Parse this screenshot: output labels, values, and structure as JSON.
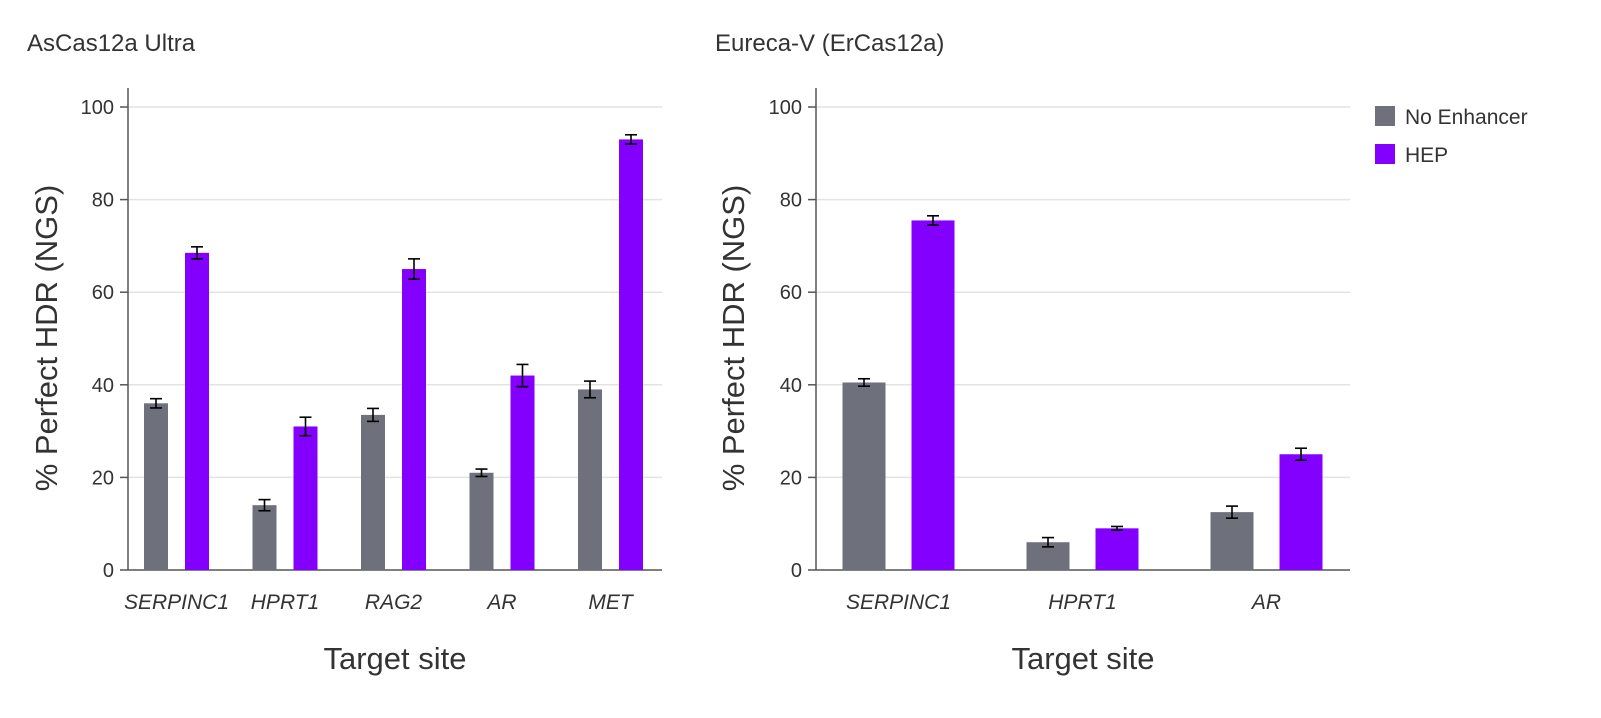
{
  "colors": {
    "no_enhancer": "#6e717c",
    "hep": "#8300ff"
  },
  "legend": {
    "items": [
      {
        "label": "No Enhancer",
        "color": "#6e717c"
      },
      {
        "label": "HEP",
        "color": "#8300ff"
      }
    ]
  },
  "chart_data": [
    {
      "type": "bar",
      "title": "AsCas12a Ultra",
      "xlabel": "Target site",
      "ylabel": "% Perfect HDR (NGS)",
      "ylim": [
        0,
        100
      ],
      "yticks": [
        "0",
        "20",
        "40",
        "60",
        "80",
        "100"
      ],
      "grid": true,
      "categories": [
        "SERPINC1",
        "HPRT1",
        "RAG2",
        "AR",
        "MET"
      ],
      "series": [
        {
          "name": "No Enhancer",
          "values": [
            36,
            14,
            33.5,
            21,
            39
          ],
          "errors": [
            1,
            1.2,
            1.4,
            0.8,
            1.8
          ]
        },
        {
          "name": "HEP",
          "values": [
            68.5,
            31,
            65,
            42,
            93
          ],
          "errors": [
            1.3,
            2,
            2.2,
            2.4,
            1
          ]
        }
      ]
    },
    {
      "type": "bar",
      "title": "Eureca-V (ErCas12a)",
      "xlabel": "Target site",
      "ylabel": "% Perfect HDR (NGS)",
      "ylim": [
        0,
        100
      ],
      "yticks": [
        "0",
        "20",
        "40",
        "60",
        "80",
        "100"
      ],
      "grid": true,
      "legend_position": "top-right",
      "categories": [
        "SERPINC1",
        "HPRT1",
        "AR"
      ],
      "series": [
        {
          "name": "No Enhancer",
          "values": [
            40.5,
            6,
            12.5
          ],
          "errors": [
            0.8,
            1,
            1.3
          ]
        },
        {
          "name": "HEP",
          "values": [
            75.5,
            9,
            25
          ],
          "errors": [
            1,
            0.4,
            1.3
          ]
        }
      ]
    }
  ]
}
